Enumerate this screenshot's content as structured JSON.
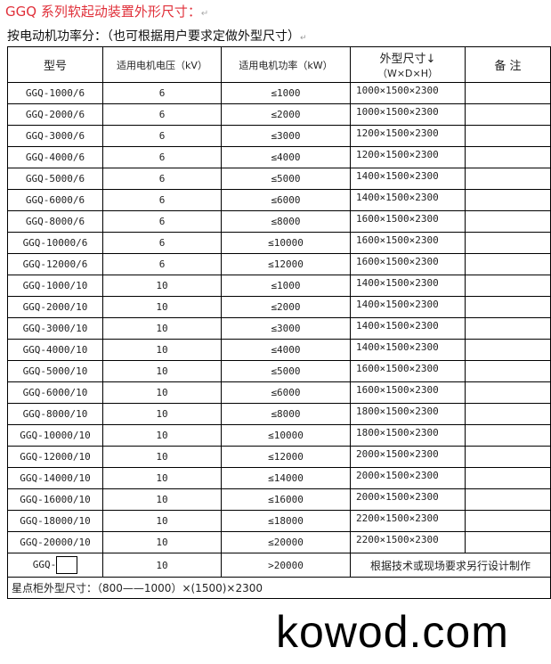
{
  "title": "GGQ 系列软起动装置外形尺寸：",
  "subtitle": "按电动机功率分：（也可根据用户要求定做外型尺寸）",
  "paragraph_mark": "↵",
  "headers": {
    "model": "型号",
    "voltage": "适用电机电压（kV）",
    "power": "适用电机功率（kW）",
    "dims": "外型尺寸↓",
    "dims_sub": "（W×D×H）",
    "remark": "备 注"
  },
  "rows": [
    {
      "model": "GGQ-1000/6",
      "voltage": "6",
      "power": "≤1000",
      "dims": "1000×1500×2300"
    },
    {
      "model": "GGQ-2000/6",
      "voltage": "6",
      "power": "≤2000",
      "dims": "1000×1500×2300"
    },
    {
      "model": "GGQ-3000/6",
      "voltage": "6",
      "power": "≤3000",
      "dims": "1200×1500×2300"
    },
    {
      "model": "GGQ-4000/6",
      "voltage": "6",
      "power": "≤4000",
      "dims": "1200×1500×2300"
    },
    {
      "model": "GGQ-5000/6",
      "voltage": "6",
      "power": "≤5000",
      "dims": "1400×1500×2300"
    },
    {
      "model": "GGQ-6000/6",
      "voltage": "6",
      "power": "≤6000",
      "dims": "1400×1500×2300"
    },
    {
      "model": "GGQ-8000/6",
      "voltage": "6",
      "power": "≤8000",
      "dims": "1600×1500×2300"
    },
    {
      "model": "GGQ-10000/6",
      "voltage": "6",
      "power": "≤10000",
      "dims": "1600×1500×2300"
    },
    {
      "model": "GGQ-12000/6",
      "voltage": "6",
      "power": "≤12000",
      "dims": "1600×1500×2300"
    },
    {
      "model": "GGQ-1000/10",
      "voltage": "10",
      "power": "≤1000",
      "dims": "1400×1500×2300"
    },
    {
      "model": "GGQ-2000/10",
      "voltage": "10",
      "power": "≤2000",
      "dims": "1400×1500×2300"
    },
    {
      "model": "GGQ-3000/10",
      "voltage": "10",
      "power": "≤3000",
      "dims": "1400×1500×2300"
    },
    {
      "model": "GGQ-4000/10",
      "voltage": "10",
      "power": "≤4000",
      "dims": "1400×1500×2300"
    },
    {
      "model": "GGQ-5000/10",
      "voltage": "10",
      "power": "≤5000",
      "dims": "1600×1500×2300"
    },
    {
      "model": "GGQ-6000/10",
      "voltage": "10",
      "power": "≤6000",
      "dims": "1600×1500×2300"
    },
    {
      "model": "GGQ-8000/10",
      "voltage": "10",
      "power": "≤8000",
      "dims": "1800×1500×2300"
    },
    {
      "model": "GGQ-10000/10",
      "voltage": "10",
      "power": "≤10000",
      "dims": "1800×1500×2300"
    },
    {
      "model": "GGQ-12000/10",
      "voltage": "10",
      "power": "≤12000",
      "dims": "2000×1500×2300"
    },
    {
      "model": "GGQ-14000/10",
      "voltage": "10",
      "power": "≤14000",
      "dims": "2000×1500×2300"
    },
    {
      "model": "GGQ-16000/10",
      "voltage": "10",
      "power": "≤16000",
      "dims": "2000×1500×2300"
    },
    {
      "model": "GGQ-18000/10",
      "voltage": "10",
      "power": "≤18000",
      "dims": "2200×1500×2300"
    },
    {
      "model": "GGQ-20000/10",
      "voltage": "10",
      "power": "≤20000",
      "dims": "2200×1500×2300"
    }
  ],
  "custom_row": {
    "model": "GGQ-",
    "voltage": "10",
    "power": ">20000",
    "note": "根据技术或现场要求另行设计制作"
  },
  "footer": "星点柜外型尺寸：（800——1000）×(1500)×2300",
  "watermark": "kowod.com"
}
